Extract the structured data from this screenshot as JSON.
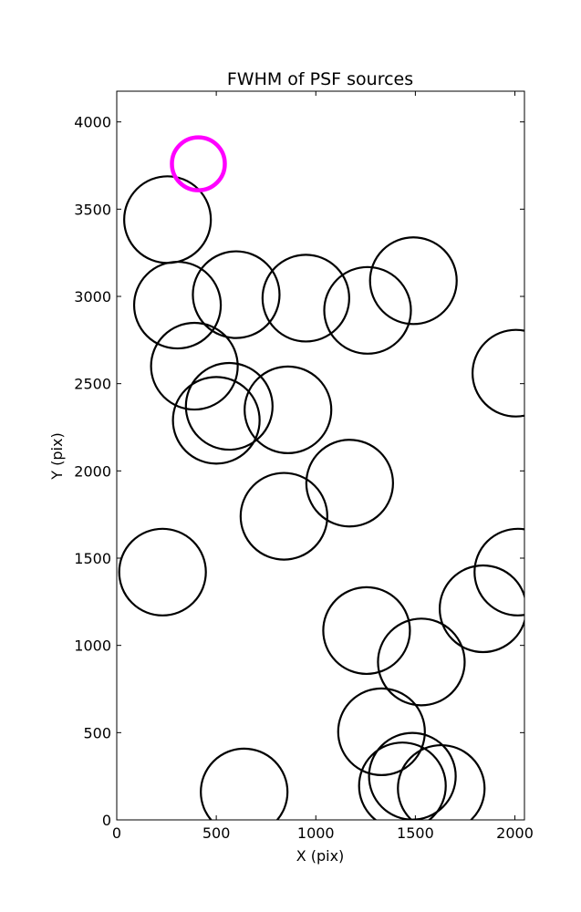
{
  "chart_data": {
    "type": "scatter",
    "title": "FWHM of PSF sources",
    "xlabel": "X (pix)",
    "ylabel": "Y (pix)",
    "xlim": [
      0,
      2048
    ],
    "ylim": [
      0,
      4176
    ],
    "x_ticks": [
      0,
      500,
      1000,
      1500,
      2000
    ],
    "y_ticks": [
      0,
      500,
      1000,
      1500,
      2000,
      2500,
      3000,
      3500,
      4000
    ],
    "grid": false,
    "colors": {
      "marker": "#000000",
      "highlight": "#ff00ff"
    },
    "marker": "circle",
    "radius_data_units": 232,
    "points": [
      {
        "x": 255,
        "y": 3440
      },
      {
        "x": 305,
        "y": 2950
      },
      {
        "x": 600,
        "y": 3010
      },
      {
        "x": 950,
        "y": 2990
      },
      {
        "x": 1260,
        "y": 2920
      },
      {
        "x": 1490,
        "y": 3090
      },
      {
        "x": 390,
        "y": 2600
      },
      {
        "x": 500,
        "y": 2290
      },
      {
        "x": 565,
        "y": 2370
      },
      {
        "x": 860,
        "y": 2350
      },
      {
        "x": 2005,
        "y": 2560
      },
      {
        "x": 1170,
        "y": 1930
      },
      {
        "x": 840,
        "y": 1740
      },
      {
        "x": 230,
        "y": 1420
      },
      {
        "x": 2015,
        "y": 1420
      },
      {
        "x": 1840,
        "y": 1210
      },
      {
        "x": 1255,
        "y": 1085
      },
      {
        "x": 1530,
        "y": 905
      },
      {
        "x": 1330,
        "y": 505
      },
      {
        "x": 1485,
        "y": 250
      },
      {
        "x": 1435,
        "y": 195
      },
      {
        "x": 1630,
        "y": 180
      },
      {
        "x": 640,
        "y": 160
      }
    ],
    "highlight_points": [
      {
        "x": 410,
        "y": 3760
      }
    ]
  }
}
